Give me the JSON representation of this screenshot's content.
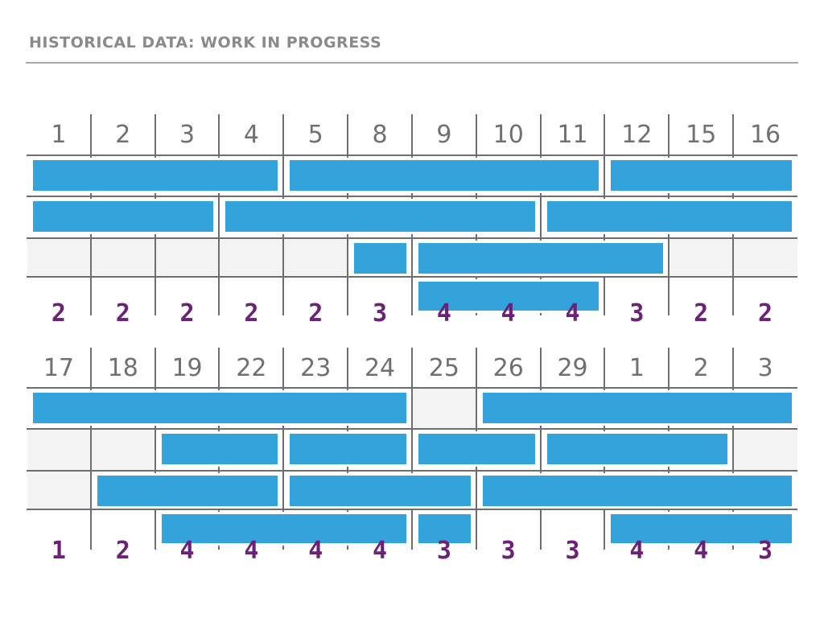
{
  "title": "HISTORICAL DATA: WORK IN PROGRESS",
  "colors": {
    "card": "#33a3dc",
    "grid": "#6e6e6e",
    "title": "#8a8a8a",
    "day_label": "#707070",
    "wip_count": "#6d2077",
    "empty_cell": "#f4f4f4"
  },
  "boards": [
    {
      "days": [
        "1",
        "2",
        "3",
        "4",
        "5",
        "8",
        "9",
        "10",
        "11",
        "12",
        "15",
        "16"
      ],
      "lanes": [
        [
          {
            "start": 0,
            "end": 3
          },
          {
            "start": 4,
            "end": 8
          },
          {
            "start": 9,
            "end": 11
          }
        ],
        [
          {
            "start": 0,
            "end": 2
          },
          {
            "start": 3,
            "end": 7
          },
          {
            "start": 8,
            "end": 11
          }
        ],
        [
          {
            "start": 5,
            "end": 5
          },
          {
            "start": 6,
            "end": 9
          }
        ],
        [
          {
            "start": 6,
            "end": 8
          }
        ]
      ],
      "wip": [
        "2",
        "2",
        "2",
        "2",
        "2",
        "3",
        "4",
        "4",
        "4",
        "3",
        "2",
        "2"
      ]
    },
    {
      "days": [
        "17",
        "18",
        "19",
        "22",
        "23",
        "24",
        "25",
        "26",
        "29",
        "1",
        "2",
        "3"
      ],
      "lanes": [
        [
          {
            "start": 0,
            "end": 5
          },
          {
            "start": 7,
            "end": 11
          }
        ],
        [
          {
            "start": 2,
            "end": 3
          },
          {
            "start": 4,
            "end": 5
          },
          {
            "start": 6,
            "end": 7
          },
          {
            "start": 8,
            "end": 10
          }
        ],
        [
          {
            "start": 1,
            "end": 3
          },
          {
            "start": 4,
            "end": 6
          },
          {
            "start": 7,
            "end": 11
          }
        ],
        [
          {
            "start": 2,
            "end": 5
          },
          {
            "start": 6,
            "end": 6
          },
          {
            "start": 9,
            "end": 11
          }
        ]
      ],
      "wip": [
        "1",
        "2",
        "4",
        "4",
        "4",
        "4",
        "3",
        "3",
        "3",
        "4",
        "4",
        "3"
      ]
    }
  ]
}
